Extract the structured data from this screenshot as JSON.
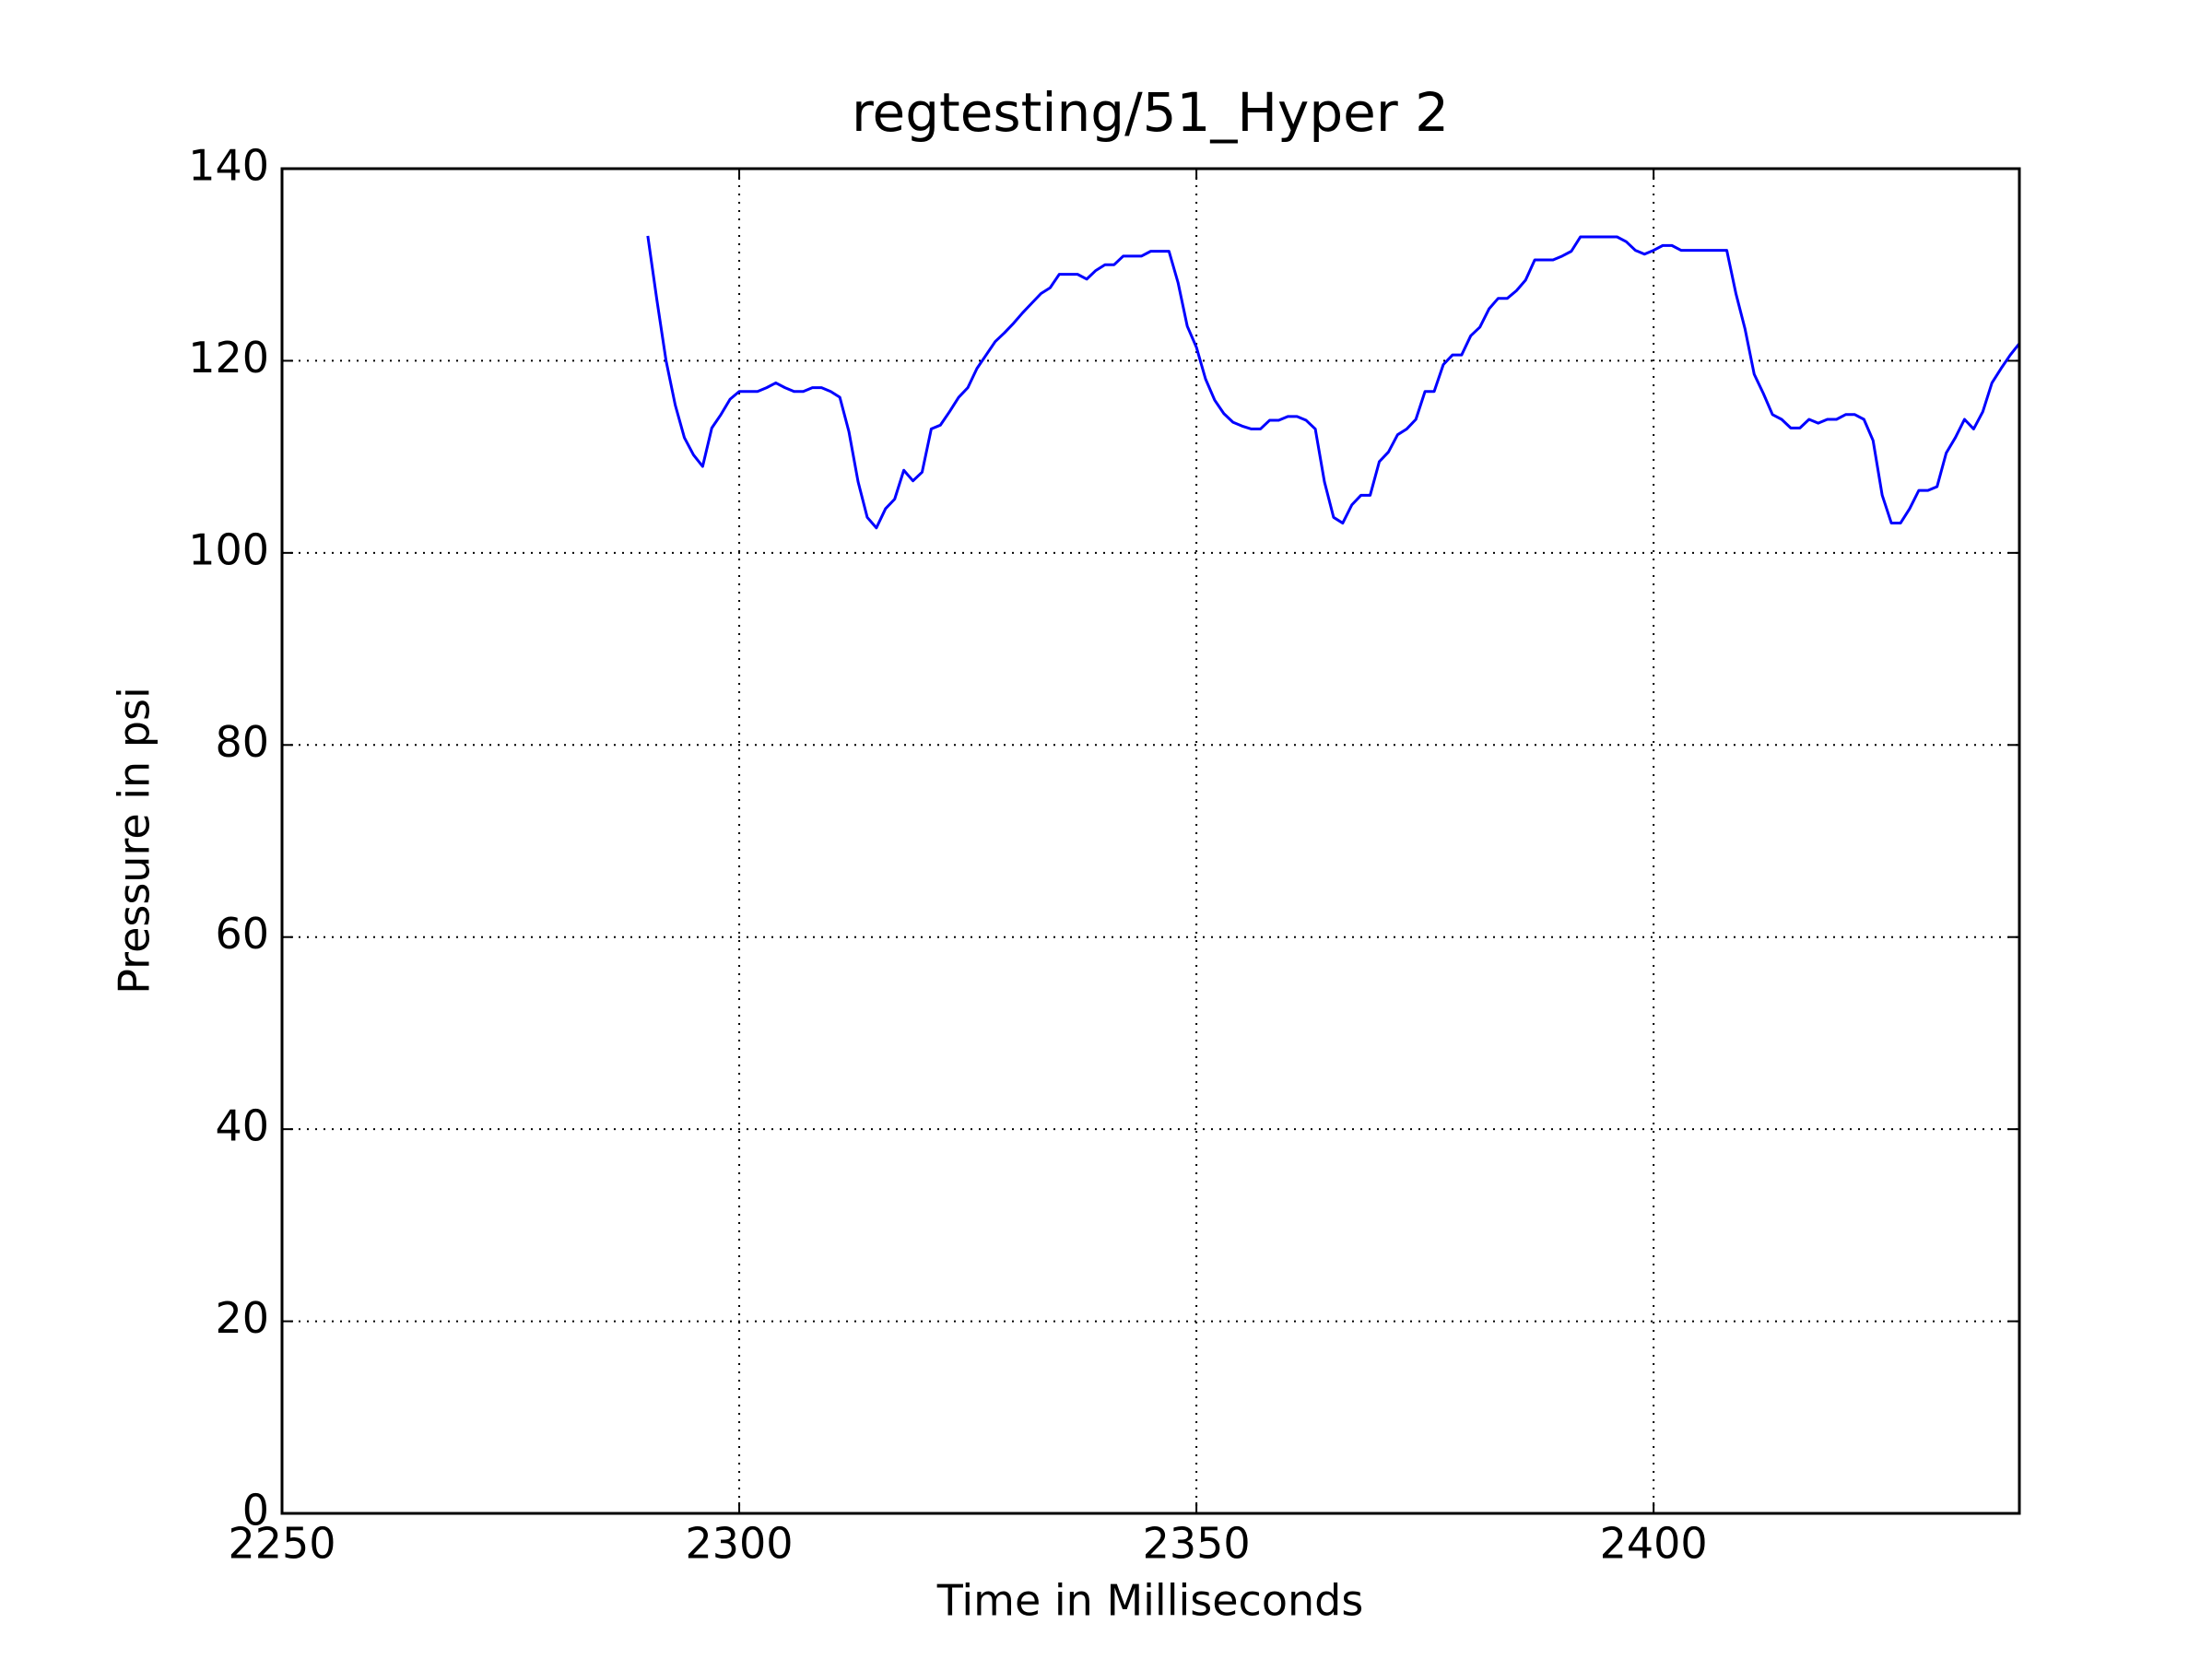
{
  "chart_data": {
    "type": "line",
    "title": "regtesting/51_Hyper 2",
    "x_label": "Time in Milliseconds",
    "y_label": "Pressure in psi",
    "xlim": [
      2250,
      2440
    ],
    "xticks": [
      2250,
      2300,
      2350,
      2400
    ],
    "ylim": [
      0,
      140
    ],
    "yticks": [
      0,
      20,
      40,
      60,
      80,
      100,
      120,
      140
    ],
    "grid": true,
    "series": [
      {
        "color": "#0000ff",
        "x": [
          2290,
          2291,
          2292,
          2293,
          2294,
          2295,
          2296,
          2297,
          2298,
          2299,
          2300,
          2301,
          2302,
          2303,
          2304,
          2305,
          2306,
          2307,
          2308,
          2309,
          2310,
          2311,
          2312,
          2313,
          2314,
          2315,
          2316,
          2317,
          2318,
          2319,
          2320,
          2321,
          2322,
          2323,
          2324,
          2325,
          2326,
          2327,
          2328,
          2329,
          2330,
          2331,
          2332,
          2333,
          2334,
          2335,
          2336,
          2337,
          2338,
          2339,
          2340,
          2341,
          2342,
          2343,
          2344,
          2345,
          2346,
          2347,
          2348,
          2349,
          2350,
          2351,
          2352,
          2353,
          2354,
          2355,
          2356,
          2357,
          2358,
          2359,
          2360,
          2361,
          2362,
          2363,
          2364,
          2365,
          2366,
          2367,
          2368,
          2369,
          2370,
          2371,
          2372,
          2373,
          2374,
          2375,
          2376,
          2377,
          2378,
          2379,
          2380,
          2381,
          2382,
          2383,
          2384,
          2385,
          2386,
          2387,
          2388,
          2389,
          2390,
          2391,
          2392,
          2393,
          2394,
          2395,
          2396,
          2397,
          2398,
          2399,
          2400,
          2401,
          2402,
          2403,
          2404,
          2405,
          2406,
          2407,
          2408,
          2409,
          2410,
          2411,
          2412,
          2413,
          2414,
          2415,
          2416,
          2417,
          2418,
          2419,
          2420,
          2421,
          2422,
          2423,
          2424,
          2425,
          2426,
          2427,
          2428,
          2429,
          2430,
          2431,
          2432,
          2433,
          2434,
          2435,
          2436,
          2437,
          2438,
          2439,
          2440
        ],
        "values": [
          133,
          126.3,
          120,
          115.4,
          112,
          110.2,
          109,
          113,
          114.4,
          116,
          116.8,
          116.8,
          116.8,
          117.2,
          117.7,
          117.2,
          116.8,
          116.8,
          117.2,
          117.2,
          116.8,
          116.2,
          112.6,
          107.4,
          103.7,
          102.6,
          104.6,
          105.6,
          108.6,
          107.5,
          108.4,
          112.9,
          113.3,
          114.7,
          116.2,
          117.2,
          119.2,
          120.6,
          122,
          122.9,
          123.9,
          125,
          126,
          127,
          127.6,
          129,
          129,
          129,
          128.5,
          129.4,
          130,
          130,
          130.9,
          130.9,
          130.9,
          131.4,
          131.4,
          131.4,
          128.1,
          123.6,
          121.4,
          118.1,
          115.9,
          114.5,
          113.6,
          113.2,
          112.9,
          112.9,
          113.8,
          113.8,
          114.2,
          114.2,
          113.8,
          112.9,
          107.4,
          103.7,
          103.1,
          105,
          106,
          106,
          109.5,
          110.5,
          112.3,
          112.9,
          113.9,
          116.8,
          116.8,
          119.6,
          120.6,
          120.6,
          122.6,
          123.5,
          125.4,
          126.5,
          126.5,
          127.3,
          128.4,
          130.5,
          130.5,
          130.5,
          130.9,
          131.4,
          132.9,
          132.9,
          132.9,
          132.9,
          132.9,
          132.4,
          131.5,
          131.1,
          131.5,
          132,
          132,
          131.5,
          131.5,
          131.5,
          131.5,
          131.5,
          131.5,
          127,
          123.3,
          118.6,
          116.6,
          114.4,
          113.9,
          113,
          113,
          113.9,
          113.5,
          113.9,
          113.9,
          114.4,
          114.4,
          113.9,
          111.7,
          106,
          103.1,
          103.1,
          104.6,
          106.5,
          106.5,
          106.9,
          110.4,
          112,
          113.9,
          112.9,
          114.7,
          117.7,
          119.2,
          120.6,
          121.8
        ]
      }
    ]
  }
}
